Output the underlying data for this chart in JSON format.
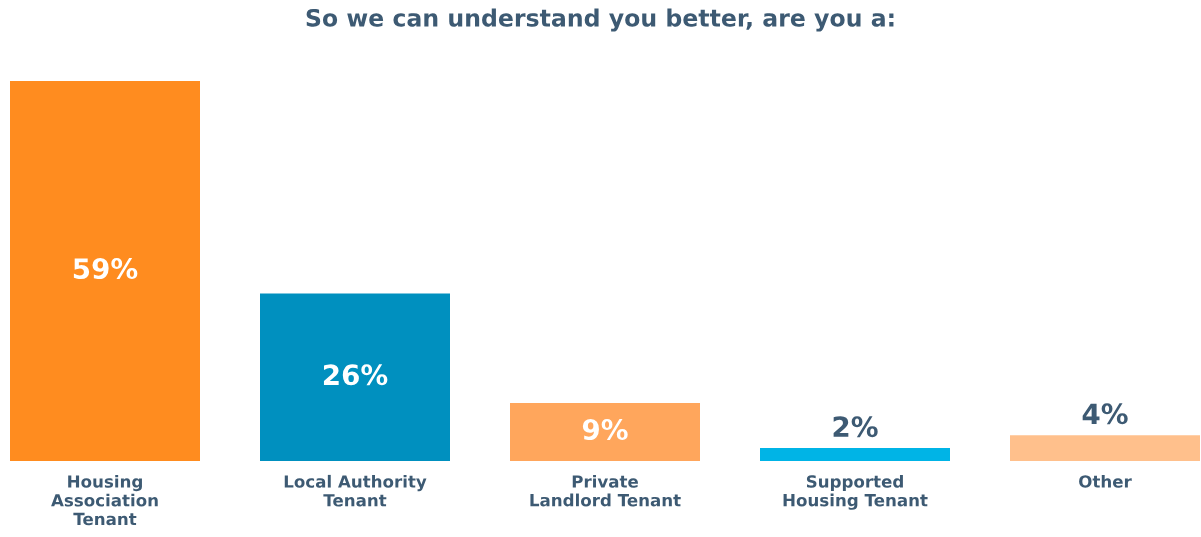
{
  "chart_data": {
    "type": "bar",
    "title": "So we can understand you better, are you a:",
    "categories": [
      "Housing\nAssociation\nTenant",
      "Local Authority\nTenant",
      "Private\nLandlord Tenant",
      "Supported\nHousing Tenant",
      "Other"
    ],
    "values": [
      59,
      26,
      9,
      2,
      4
    ],
    "colors": [
      "#ff8c1f",
      "#0090bf",
      "#ffa65c",
      "#00b4e6",
      "#ffc08c"
    ],
    "value_labels": [
      "59%",
      "26%",
      "9%",
      "2%",
      "4%"
    ],
    "grid": false,
    "legend": false
  }
}
